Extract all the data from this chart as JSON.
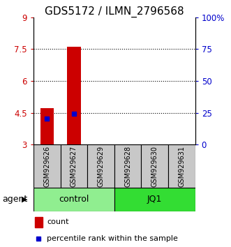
{
  "title": "GDS5172 / ILMN_2796568",
  "samples": [
    "GSM929626",
    "GSM929627",
    "GSM929629",
    "GSM929628",
    "GSM929630",
    "GSM929631"
  ],
  "count_values": [
    4.72,
    7.62,
    3.0,
    3.0,
    3.0,
    3.0
  ],
  "percentile_values": [
    4.22,
    4.45,
    null,
    null,
    null,
    null
  ],
  "ylim_left": [
    3,
    9
  ],
  "ylim_right": [
    0,
    100
  ],
  "yticks_left": [
    3,
    4.5,
    6,
    7.5,
    9
  ],
  "ytick_labels_left": [
    "3",
    "4.5",
    "6",
    "7.5",
    "9"
  ],
  "yticks_right": [
    0,
    25,
    50,
    75,
    100
  ],
  "ytick_labels_right": [
    "0",
    "25",
    "50",
    "75",
    "100%"
  ],
  "groups": [
    {
      "label": "control",
      "indices": [
        0,
        1,
        2
      ],
      "color": "#90EE90"
    },
    {
      "label": "JQ1",
      "indices": [
        3,
        4,
        5
      ],
      "color": "#33DD33"
    }
  ],
  "bar_color": "#CC0000",
  "percentile_color": "#0000CC",
  "bar_width": 0.5,
  "sample_box_color": "#C8C8C8",
  "agent_label": "agent",
  "legend_count_label": "count",
  "legend_percentile_label": "percentile rank within the sample",
  "title_fontsize": 11,
  "tick_fontsize": 8.5,
  "sample_fontsize": 7,
  "group_fontsize": 9,
  "legend_fontsize": 8
}
